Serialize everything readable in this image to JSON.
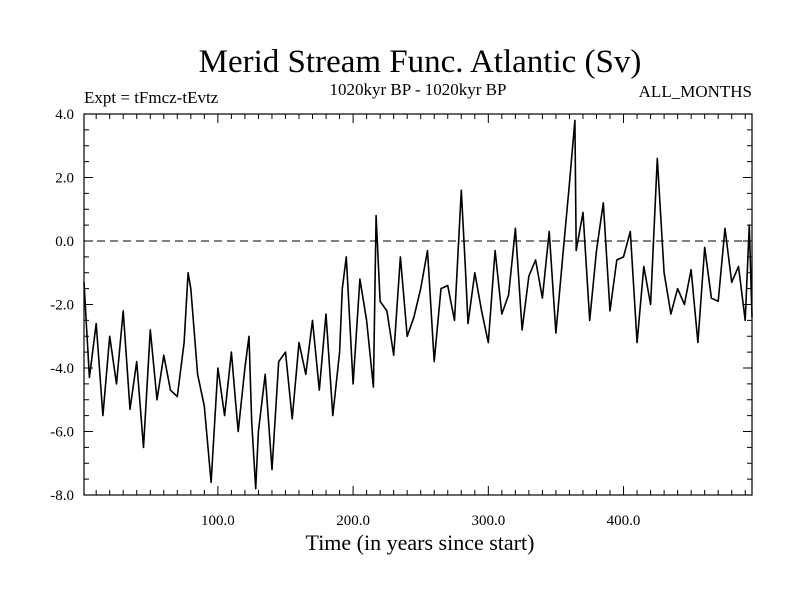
{
  "chart_data": {
    "type": "line",
    "title": "Merid Stream Func. Atlantic (Sv)",
    "left_label": "Expt = tFmcz-tEvtz",
    "center_label": "1020kyr BP - 1020kyr BP",
    "right_label": "ALL_MONTHS",
    "xlabel": "Time (in years since start)",
    "ylabel": "",
    "xlim": [
      1,
      495
    ],
    "ylim": [
      -8.0,
      4.0
    ],
    "x_ticks": [
      100,
      200,
      300,
      400
    ],
    "x_tick_labels": [
      "100.0",
      "200.0",
      "300.0",
      "400.0"
    ],
    "y_ticks": [
      -8,
      -6,
      -4,
      -2,
      0,
      2,
      4
    ],
    "y_tick_labels": [
      "-8.0",
      "-6.0",
      "-4.0",
      "-2.0",
      "0.0",
      "2.0",
      "4.0"
    ],
    "reference_line": {
      "y": 0.0,
      "style": "dashed"
    },
    "grid": false,
    "series": [
      {
        "name": "Merid Stream Func. Atlantic",
        "x": [
          1,
          5,
          10,
          15,
          20,
          25,
          30,
          35,
          40,
          45,
          50,
          55,
          60,
          65,
          70,
          75,
          78,
          80,
          85,
          90,
          95,
          100,
          105,
          110,
          113,
          115,
          120,
          123,
          125,
          128,
          130,
          135,
          140,
          145,
          150,
          155,
          160,
          165,
          170,
          175,
          180,
          185,
          190,
          192,
          195,
          200,
          205,
          210,
          215,
          217,
          220,
          225,
          230,
          235,
          240,
          245,
          250,
          255,
          260,
          265,
          270,
          275,
          280,
          283,
          285,
          290,
          295,
          300,
          305,
          310,
          315,
          320,
          325,
          330,
          335,
          340,
          345,
          350,
          355,
          360,
          364,
          365,
          370,
          375,
          380,
          385,
          390,
          395,
          400,
          405,
          410,
          415,
          420,
          425,
          430,
          435,
          440,
          445,
          450,
          455,
          460,
          465,
          470,
          475,
          480,
          485,
          490,
          493,
          495
        ],
        "values": [
          -1.3,
          -4.3,
          -2.6,
          -5.5,
          -3.0,
          -4.5,
          -2.2,
          -5.3,
          -3.8,
          -6.5,
          -2.8,
          -5.0,
          -3.6,
          -4.7,
          -4.9,
          -3.2,
          -1.0,
          -1.5,
          -4.2,
          -5.2,
          -7.6,
          -4.0,
          -5.5,
          -3.5,
          -5.0,
          -6.0,
          -4.0,
          -3.0,
          -5.7,
          -7.8,
          -6.0,
          -4.2,
          -7.2,
          -3.8,
          -3.5,
          -5.6,
          -3.2,
          -4.2,
          -2.5,
          -4.7,
          -2.3,
          -5.5,
          -3.5,
          -1.5,
          -0.5,
          -4.5,
          -1.2,
          -2.5,
          -4.6,
          0.8,
          -1.9,
          -2.2,
          -3.6,
          -0.5,
          -3.0,
          -2.4,
          -1.5,
          -0.3,
          -3.8,
          -1.5,
          -1.4,
          -2.5,
          1.6,
          -0.8,
          -2.6,
          -1.0,
          -2.2,
          -3.2,
          -0.3,
          -2.3,
          -1.7,
          0.4,
          -2.8,
          -1.1,
          -0.6,
          -1.8,
          0.3,
          -2.9,
          -0.5,
          1.8,
          3.8,
          -0.3,
          0.9,
          -2.5,
          -0.3,
          1.2,
          -2.2,
          -0.6,
          -0.5,
          0.3,
          -3.2,
          -0.8,
          -2.0,
          2.6,
          -1.0,
          -2.3,
          -1.5,
          -2.0,
          -0.9,
          -3.2,
          -0.2,
          -1.8,
          -1.9,
          0.4,
          -1.3,
          -0.8,
          -2.5,
          0.5,
          -2.4
        ]
      }
    ]
  }
}
